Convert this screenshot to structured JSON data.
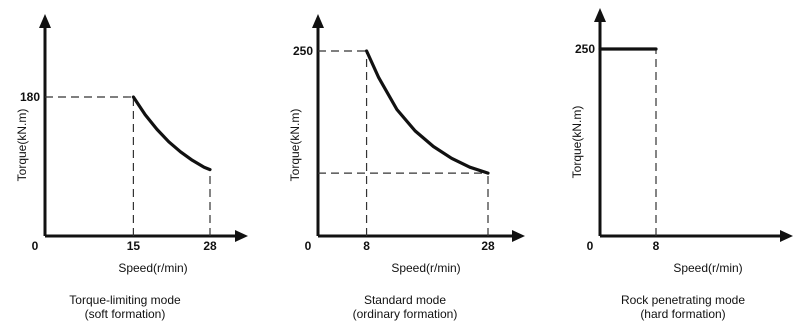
{
  "chart_data": [
    {
      "type": "line",
      "ylabel": "Torque(kN.m)",
      "xlabel": "Speed(r/min)",
      "origin_label": "0",
      "x_ticks": [
        "15",
        "28"
      ],
      "y_ticks": [
        "180"
      ],
      "series": [
        {
          "x": [
            15,
            17,
            19,
            21,
            23,
            25,
            27,
            28
          ],
          "y": [
            180,
            157,
            138,
            122,
            109,
            98,
            89,
            86
          ]
        }
      ],
      "guides": {
        "x": [
          15,
          28
        ],
        "y": [
          180
        ]
      },
      "caption_line1": "Torque-limiting mode",
      "caption_line2": "(soft formation)"
    },
    {
      "type": "line",
      "ylabel": "Torque(kN.m)",
      "xlabel": "Speed(r/min)",
      "origin_label": "0",
      "x_ticks": [
        "8",
        "28"
      ],
      "y_ticks": [
        "250"
      ],
      "series": [
        {
          "x": [
            8,
            10,
            13,
            16,
            19,
            22,
            25,
            28
          ],
          "y": [
            250,
            214,
            171,
            142,
            121,
            105,
            93,
            85
          ]
        }
      ],
      "guides": {
        "x": [
          8,
          28
        ],
        "y": [
          250,
          85
        ]
      },
      "caption_line1": "Standard mode",
      "caption_line2": "(ordinary formation)"
    },
    {
      "type": "line",
      "ylabel": "Torque(kN.m)",
      "xlabel": "Speed(r/min)",
      "origin_label": "0",
      "x_ticks": [
        "8"
      ],
      "y_ticks": [
        "250"
      ],
      "series": [
        {
          "x": [
            0,
            8
          ],
          "y": [
            250,
            250
          ]
        }
      ],
      "guides": {
        "x": [
          8
        ],
        "y": []
      },
      "caption_line1": "Rock penetrating mode",
      "caption_line2": "(hard formation)"
    }
  ]
}
